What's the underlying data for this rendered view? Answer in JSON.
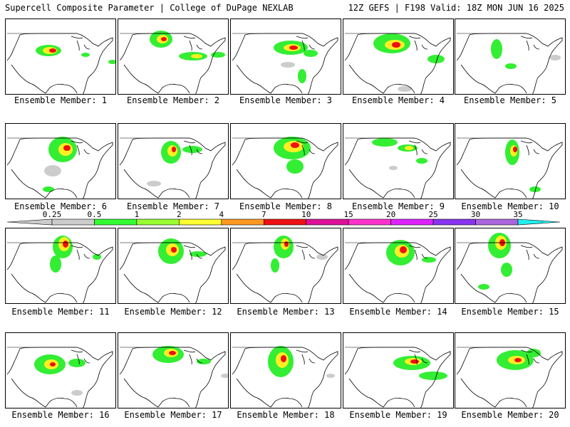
{
  "header": {
    "left": "Supercell Composite Parameter | College of DuPage NEXLAB",
    "right": "12Z GEFS | F198 Valid: 18Z MON JUN 16 2025"
  },
  "members": [
    {
      "label": "Ensemble Member: 1"
    },
    {
      "label": "Ensemble Member: 2"
    },
    {
      "label": "Ensemble Member: 3"
    },
    {
      "label": "Ensemble Member: 4"
    },
    {
      "label": "Ensemble Member: 5"
    },
    {
      "label": "Ensemble Member: 6"
    },
    {
      "label": "Ensemble Member: 7"
    },
    {
      "label": "Ensemble Member: 8"
    },
    {
      "label": "Ensemble Member: 9"
    },
    {
      "label": "Ensemble Member: 10"
    },
    {
      "label": "Ensemble Member: 11"
    },
    {
      "label": "Ensemble Member: 12"
    },
    {
      "label": "Ensemble Member: 13"
    },
    {
      "label": "Ensemble Member: 14"
    },
    {
      "label": "Ensemble Member: 15"
    },
    {
      "label": "Ensemble Member: 16"
    },
    {
      "label": "Ensemble Member: 17"
    },
    {
      "label": "Ensemble Member: 18"
    },
    {
      "label": "Ensemble Member: 19"
    },
    {
      "label": "Ensemble Member: 20"
    }
  ],
  "colorbar": {
    "ticks": [
      "0.25",
      "0.5",
      "1",
      "2",
      "4",
      "7",
      "10",
      "15",
      "20",
      "25",
      "30",
      "35"
    ],
    "colors": [
      "#cccccc",
      "#33ff33",
      "#99ff33",
      "#ffff33",
      "#ff9922",
      "#ee1111",
      "#dd1199",
      "#ff33cc",
      "#dd22ff",
      "#8833ee",
      "#aa66dd",
      "#22eeee"
    ]
  },
  "colors": {
    "land_line": "#000000",
    "low": "#33ee33",
    "mid": "#ffee22",
    "high": "#ee1111",
    "trace": "#cccccc"
  }
}
